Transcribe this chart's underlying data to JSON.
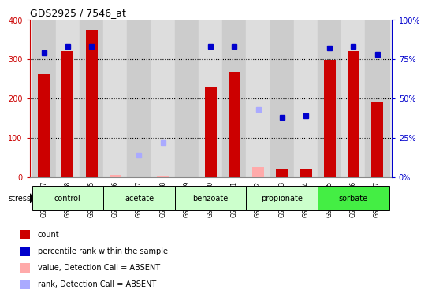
{
  "title": "GDS2925 / 7546_at",
  "samples": [
    "GSM137497",
    "GSM137498",
    "GSM137675",
    "GSM137676",
    "GSM137677",
    "GSM137678",
    "GSM137679",
    "GSM137680",
    "GSM137681",
    "GSM137682",
    "GSM137683",
    "GSM137684",
    "GSM137685",
    "GSM137686",
    "GSM137687"
  ],
  "count_values": [
    263,
    320,
    375,
    null,
    null,
    null,
    null,
    228,
    268,
    null,
    20,
    20,
    298,
    320,
    191
  ],
  "count_absent": [
    null,
    null,
    null,
    5,
    null,
    2,
    null,
    null,
    null,
    25,
    null,
    null,
    null,
    null,
    null
  ],
  "percentile_present": [
    79,
    83,
    83,
    null,
    null,
    null,
    null,
    83,
    83,
    null,
    38,
    39,
    82,
    83,
    78
  ],
  "percentile_absent": [
    null,
    null,
    null,
    null,
    14,
    22,
    null,
    null,
    null,
    43,
    null,
    null,
    null,
    null,
    null
  ],
  "groups": [
    {
      "name": "control",
      "start": 0,
      "end": 3,
      "color": "#ccffcc"
    },
    {
      "name": "acetate",
      "start": 3,
      "end": 6,
      "color": "#ccffcc"
    },
    {
      "name": "benzoate",
      "start": 6,
      "end": 9,
      "color": "#ccffcc"
    },
    {
      "name": "propionate",
      "start": 9,
      "end": 12,
      "color": "#ccffcc"
    },
    {
      "name": "sorbate",
      "start": 12,
      "end": 15,
      "color": "#44ee44"
    }
  ],
  "ylim_left": [
    0,
    400
  ],
  "ylim_right": [
    0,
    100
  ],
  "bar_color": "#cc0000",
  "bar_absent_color": "#ffaaaa",
  "dot_color": "#0000cc",
  "dot_absent_color": "#aaaaff",
  "bg_color": "#ffffff"
}
